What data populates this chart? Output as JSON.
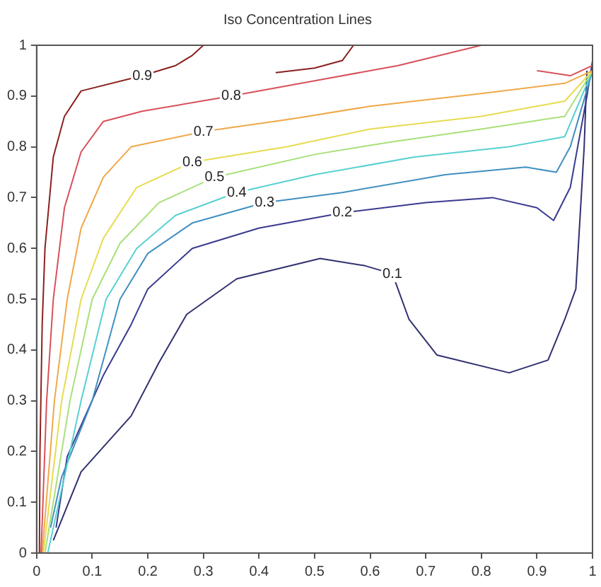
{
  "chart_data": {
    "type": "line",
    "title": "Iso Concentration Lines",
    "xlim": [
      0,
      1
    ],
    "ylim": [
      0,
      1
    ],
    "xticks": [
      0,
      0.1,
      0.2,
      0.3,
      0.4,
      0.5,
      0.6,
      0.7,
      0.8,
      0.9,
      1
    ],
    "yticks": [
      0,
      0.1,
      0.2,
      0.3,
      0.4,
      0.5,
      0.6,
      0.7,
      0.8,
      0.9,
      1
    ],
    "grid": false,
    "legend": false,
    "marker": "none",
    "line_style": "solid",
    "series": [
      {
        "name": "0.9",
        "color": "#8b2020",
        "x": [
          0.005,
          0.006,
          0.01,
          0.015,
          0.03,
          0.05,
          0.08,
          0.19,
          0.25,
          0.28,
          0.3,
          0.35,
          0.43,
          0.5,
          0.55,
          0.57
        ],
        "values": [
          0,
          0.2,
          0.45,
          0.6,
          0.78,
          0.86,
          0.91,
          0.94,
          0.96,
          0.98,
          1.0,
          null,
          0.946,
          0.955,
          0.97,
          1.0
        ]
      },
      {
        "name": "0.8",
        "color": "#d8505a",
        "x": [
          0.008,
          0.018,
          0.03,
          0.05,
          0.08,
          0.12,
          0.19,
          0.35,
          0.5,
          0.65,
          0.8,
          0.85,
          0.9,
          0.96,
          1.0
        ],
        "values": [
          0,
          0.3,
          0.5,
          0.68,
          0.79,
          0.85,
          0.87,
          0.9,
          0.93,
          0.96,
          1.0,
          null,
          0.95,
          0.94,
          0.96
        ]
      },
      {
        "name": "0.7",
        "color": "#f0a848",
        "x": [
          0.01,
          0.032,
          0.055,
          0.08,
          0.12,
          0.17,
          0.3,
          0.46,
          0.6,
          0.8,
          0.95,
          1.0
        ],
        "values": [
          0,
          0.3,
          0.5,
          0.64,
          0.74,
          0.8,
          0.83,
          0.855,
          0.88,
          0.905,
          0.925,
          0.95
        ]
      },
      {
        "name": "0.6",
        "color": "#e6dc50",
        "x": [
          0.012,
          0.045,
          0.08,
          0.12,
          0.18,
          0.28,
          0.45,
          0.6,
          0.8,
          0.95,
          1.0
        ],
        "values": [
          0,
          0.3,
          0.5,
          0.62,
          0.72,
          0.77,
          0.8,
          0.835,
          0.86,
          0.89,
          0.95
        ]
      },
      {
        "name": "0.5",
        "color": "#a8e07a",
        "x": [
          0.015,
          0.06,
          0.1,
          0.15,
          0.22,
          0.32,
          0.5,
          0.64,
          0.8,
          0.95,
          1.0
        ],
        "values": [
          0,
          0.3,
          0.5,
          0.61,
          0.69,
          0.74,
          0.785,
          0.81,
          0.835,
          0.86,
          0.95
        ]
      },
      {
        "name": "0.4",
        "color": "#58d0d0",
        "x": [
          0.02,
          0.08,
          0.125,
          0.18,
          0.25,
          0.36,
          0.5,
          0.68,
          0.85,
          0.95,
          1.0
        ],
        "values": [
          0,
          0.3,
          0.5,
          0.6,
          0.665,
          0.71,
          0.745,
          0.78,
          0.8,
          0.82,
          0.95
        ]
      },
      {
        "name": "0.3",
        "color": "#4090c0",
        "x": [
          0.025,
          0.045,
          0.1,
          0.15,
          0.2,
          0.28,
          0.41,
          0.55,
          0.735,
          0.88,
          0.935,
          0.96,
          1.0
        ],
        "values": [
          0.05,
          0.15,
          0.3,
          0.5,
          0.59,
          0.65,
          0.69,
          0.71,
          0.745,
          0.76,
          0.75,
          0.8,
          0.95
        ]
      },
      {
        "name": "0.2",
        "color": "#3a3a90",
        "x": [
          0.035,
          0.055,
          0.12,
          0.17,
          0.2,
          0.28,
          0.4,
          0.55,
          0.7,
          0.82,
          0.9,
          0.93,
          0.96,
          0.99,
          1.0
        ],
        "values": [
          0.05,
          0.19,
          0.35,
          0.45,
          0.52,
          0.6,
          0.64,
          0.67,
          0.69,
          0.7,
          0.68,
          0.655,
          0.72,
          0.9,
          0.97
        ]
      },
      {
        "name": "0.1",
        "color": "#303070",
        "x": [
          0.03,
          0.08,
          0.17,
          0.22,
          0.27,
          0.36,
          0.51,
          0.59,
          0.64,
          0.67,
          0.72,
          0.85,
          0.92,
          0.95,
          0.97,
          0.985,
          0.99
        ],
        "values": [
          0.025,
          0.16,
          0.27,
          0.375,
          0.47,
          0.54,
          0.58,
          0.566,
          0.55,
          0.46,
          0.39,
          0.355,
          0.38,
          0.46,
          0.52,
          0.8,
          0.95
        ]
      }
    ]
  }
}
